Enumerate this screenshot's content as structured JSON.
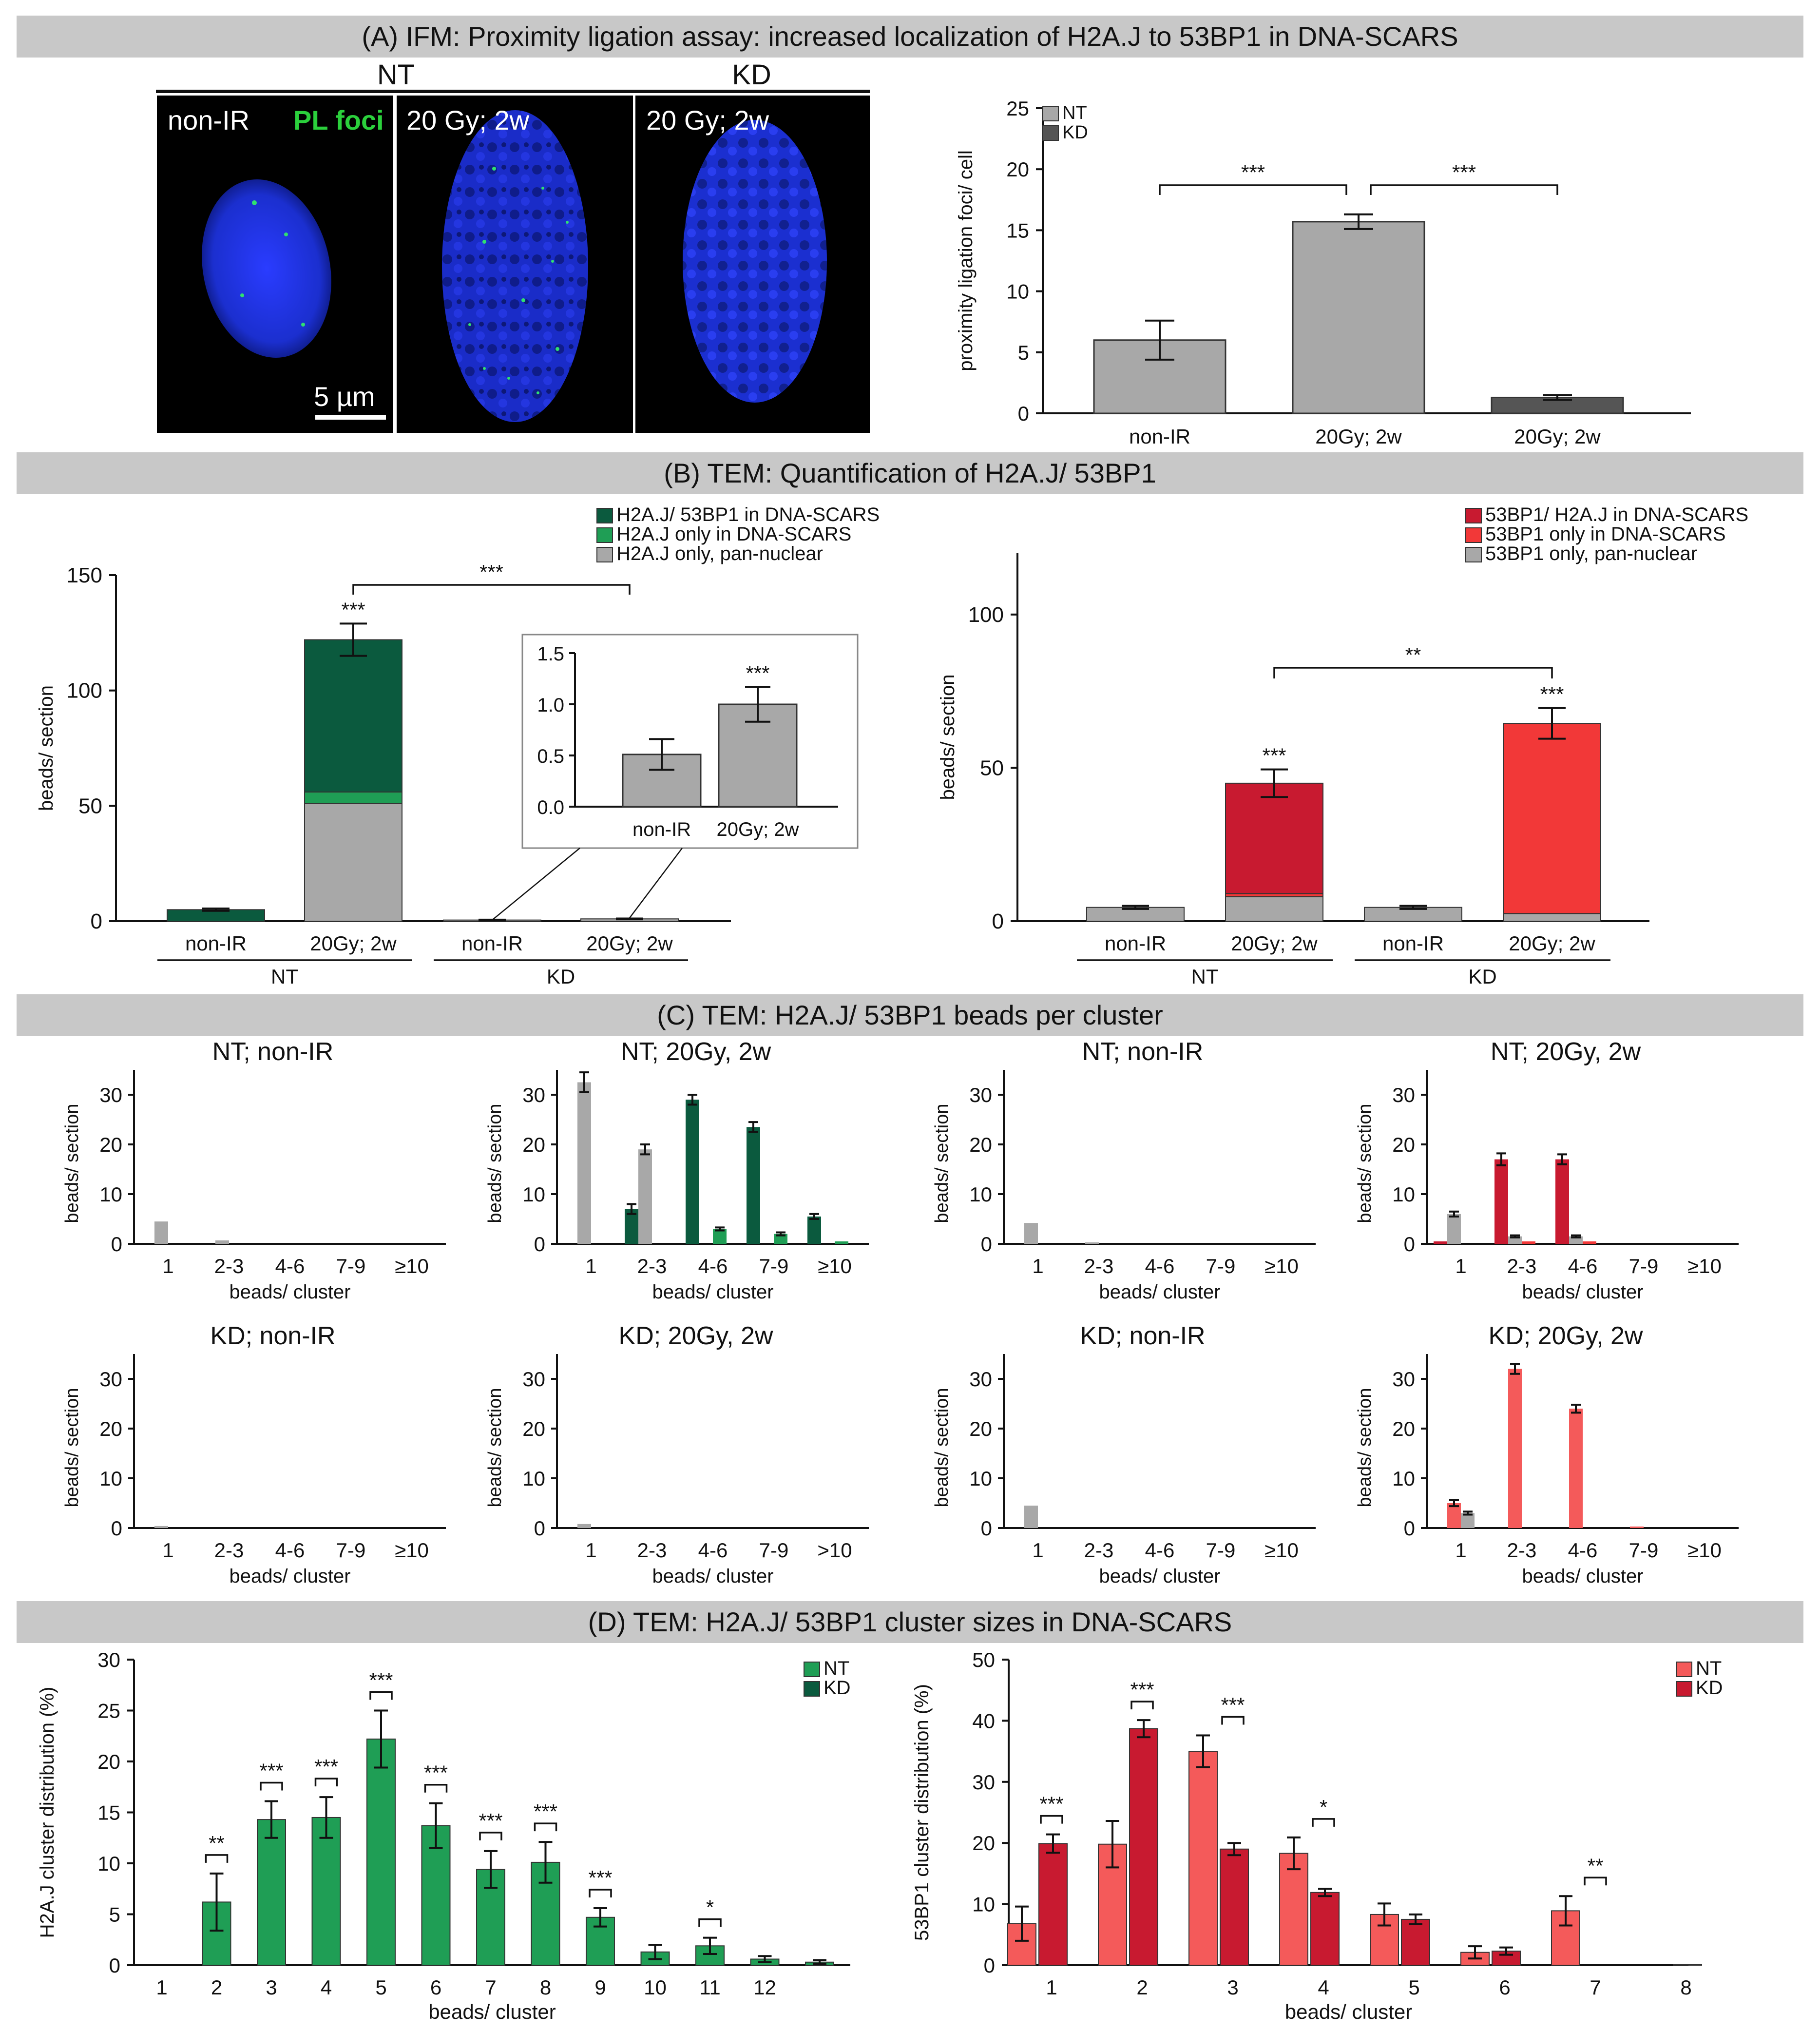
{
  "banners": {
    "a": "(A) IFM: Proximity ligation assay: increased localization of H2A.J to 53BP1 in DNA-SCARS",
    "b": "(B) TEM: Quantification of H2A.J/ 53BP1",
    "c": "(C) TEM: H2A.J/ 53BP1 beads per cluster",
    "d": "(D) TEM: H2A.J/ 53BP1 cluster sizes in DNA-SCARS"
  },
  "micrographs": {
    "group_nt": "NT",
    "group_kd": "KD",
    "panel1_label": "non-IR",
    "pl_foci": "PL foci",
    "panel2_label": "20 Gy; 2w",
    "panel3_label": "20 Gy; 2w",
    "scale_bar": "5 µm"
  },
  "colors": {
    "dark_green": "#0b5a3e",
    "green": "#1f9e55",
    "gray": "#a8a8a8",
    "dark_gray": "#555555",
    "dark_red": "#c81a30",
    "red": "#f23838",
    "light_red": "#f45a5a",
    "nucleus_blue": "#1b2fcf",
    "foci_green": "#30e070"
  },
  "chart_data": [
    {
      "id": "A",
      "type": "bar",
      "ylabel": "proximity ligation foci/ cell",
      "ylim": [
        0,
        25
      ],
      "yticks": [
        0,
        5,
        10,
        15,
        20,
        25
      ],
      "categories": [
        "non-IR",
        "20Gy; 2w",
        "20Gy; 2w"
      ],
      "values": [
        6.0,
        15.7,
        1.3
      ],
      "errors": [
        1.6,
        0.6,
        0.2
      ],
      "bar_colors": [
        "#a8a8a8",
        "#a8a8a8",
        "#555555"
      ],
      "legend": [
        {
          "name": "NT",
          "color": "#a8a8a8"
        },
        {
          "name": "KD",
          "color": "#555555"
        }
      ],
      "significance": [
        {
          "from": 0,
          "to": 1,
          "label": "***"
        },
        {
          "from": 1,
          "to": 2,
          "label": "***"
        }
      ]
    },
    {
      "id": "B-left",
      "type": "stacked-bar",
      "ylabel": "beads/ section",
      "ylim": [
        0,
        150
      ],
      "yticks": [
        0,
        50,
        100,
        150
      ],
      "categories": [
        "non-IR",
        "20Gy; 2w",
        "non-IR",
        "20Gy; 2w"
      ],
      "groups": [
        {
          "name": "NT",
          "from": 0,
          "to": 1
        },
        {
          "name": "KD",
          "from": 2,
          "to": 3
        }
      ],
      "series": [
        {
          "name": "H2A.J only, pan-nuclear",
          "color": "#a8a8a8",
          "values": [
            0,
            51,
            0.5,
            1.0
          ]
        },
        {
          "name": "H2A.J only in DNA-SCARS",
          "color": "#1f9e55",
          "values": [
            0,
            5,
            0,
            0
          ]
        },
        {
          "name": "H2A.J/ 53BP1 in DNA-SCARS",
          "color": "#0b5a3e",
          "values": [
            5,
            66,
            0,
            0
          ]
        }
      ],
      "errors": [
        0.5,
        7,
        0.15,
        0.17
      ],
      "stars": [
        "",
        "***",
        "",
        ""
      ],
      "significance": [
        {
          "from": 1,
          "to": 3,
          "label": "***"
        }
      ]
    },
    {
      "id": "B-inset",
      "type": "bar",
      "ylim": [
        0,
        1.5
      ],
      "yticks": [
        "0.0",
        "0.5",
        "1.0",
        "1.5"
      ],
      "categories": [
        "non-IR",
        "20Gy; 2w"
      ],
      "values": [
        0.51,
        1.0
      ],
      "errors": [
        0.15,
        0.17
      ],
      "stars": [
        "",
        "***"
      ]
    },
    {
      "id": "B-right",
      "type": "stacked-bar",
      "ylabel": "beads/ section",
      "ylim": [
        0,
        120
      ],
      "yticks": [
        0,
        50,
        100
      ],
      "categories": [
        "non-IR",
        "20Gy; 2w",
        "non-IR",
        "20Gy; 2w"
      ],
      "groups": [
        {
          "name": "NT",
          "from": 0,
          "to": 1
        },
        {
          "name": "KD",
          "from": 2,
          "to": 3
        }
      ],
      "series": [
        {
          "name": "53BP1 only, pan-nuclear",
          "color": "#a8a8a8",
          "values": [
            4.5,
            8,
            4.5,
            2.5
          ]
        },
        {
          "name": "53BP1 only in DNA-SCARS",
          "color": "#f23838",
          "values": [
            0,
            1,
            0,
            62
          ]
        },
        {
          "name": "53BP1/ H2A.J in DNA-SCARS",
          "color": "#c81a30",
          "values": [
            0,
            36,
            0,
            0
          ]
        }
      ],
      "errors": [
        0.5,
        4.5,
        0.5,
        5
      ],
      "stars": [
        "",
        "***",
        "",
        "***"
      ],
      "significance": [
        {
          "from": 1,
          "to": 3,
          "label": "**"
        }
      ]
    },
    {
      "id": "C1",
      "type": "bar",
      "title": "NT; non-IR",
      "xlabel": "beads/ cluster",
      "ylabel": "beads/ section",
      "ylim": [
        0,
        35
      ],
      "yticks": [
        0,
        10,
        20,
        30
      ],
      "categories": [
        "1",
        "2-3",
        "4-6",
        "7-9",
        "≥10"
      ],
      "series": [
        {
          "color": "#0b5a3e",
          "values": [
            0,
            0,
            0,
            0,
            0
          ]
        },
        {
          "color": "#a8a8a8",
          "values": [
            4.5,
            0.7,
            0,
            0,
            0
          ]
        },
        {
          "color": "#1f9e55",
          "values": [
            0,
            0,
            0,
            0,
            0
          ]
        }
      ]
    },
    {
      "id": "C2",
      "type": "bar",
      "title": "NT; 20Gy, 2w",
      "xlabel": "beads/ cluster",
      "ylabel": "beads/ section",
      "ylim": [
        0,
        35
      ],
      "yticks": [
        0,
        10,
        20,
        30
      ],
      "categories": [
        "1",
        "2-3",
        "4-6",
        "7-9",
        "≥10"
      ],
      "series": [
        {
          "color": "#0b5a3e",
          "values": [
            0,
            7,
            29,
            23.5,
            5.5
          ]
        },
        {
          "color": "#a8a8a8",
          "values": [
            32.5,
            19,
            0,
            0,
            0
          ]
        },
        {
          "color": "#1f9e55",
          "values": [
            0,
            0,
            3,
            2,
            0.5
          ]
        }
      ],
      "errors": [
        [
          0,
          1,
          1,
          1,
          0.5
        ],
        [
          2,
          1,
          0,
          0,
          0
        ],
        [
          0,
          0,
          0.3,
          0.3,
          0
        ]
      ]
    },
    {
      "id": "C3",
      "type": "bar",
      "title": "NT; non-IR",
      "xlabel": "beads/ cluster",
      "ylabel": "beads/ section",
      "ylim": [
        0,
        35
      ],
      "yticks": [
        0,
        10,
        20,
        30
      ],
      "categories": [
        "1",
        "2-3",
        "4-6",
        "7-9",
        "≥10"
      ],
      "series": [
        {
          "color": "#c81a30",
          "values": [
            0,
            0,
            0,
            0,
            0
          ]
        },
        {
          "color": "#a8a8a8",
          "values": [
            4.2,
            0.3,
            0,
            0,
            0
          ]
        },
        {
          "color": "#f23838",
          "values": [
            0,
            0,
            0,
            0,
            0
          ]
        }
      ]
    },
    {
      "id": "C4",
      "type": "bar",
      "title": "NT; 20Gy, 2w",
      "xlabel": "beads/ cluster",
      "ylabel": "beads/ section",
      "ylim": [
        0,
        35
      ],
      "yticks": [
        0,
        10,
        20,
        30
      ],
      "categories": [
        "1",
        "2-3",
        "4-6",
        "7-9",
        "≥10"
      ],
      "series": [
        {
          "color": "#c81a30",
          "values": [
            0.5,
            17,
            17,
            0,
            0
          ]
        },
        {
          "color": "#a8a8a8",
          "values": [
            6,
            1.5,
            1.5,
            0,
            0
          ]
        },
        {
          "color": "#f23838",
          "values": [
            0,
            0.5,
            0.5,
            0,
            0
          ]
        }
      ],
      "errors": [
        [
          0,
          1.2,
          1,
          0,
          0
        ],
        [
          0.5,
          0.2,
          0.2,
          0,
          0
        ],
        [
          0,
          0,
          0,
          0,
          0
        ]
      ]
    },
    {
      "id": "C5",
      "type": "bar",
      "title": "KD; non-IR",
      "xlabel": "beads/ cluster",
      "ylabel": "beads/ section",
      "ylim": [
        0,
        35
      ],
      "yticks": [
        0,
        10,
        20,
        30
      ],
      "categories": [
        "1",
        "2-3",
        "4-6",
        "7-9",
        "≥10"
      ],
      "series": [
        {
          "color": "#0b5a3e",
          "values": [
            0,
            0,
            0,
            0,
            0
          ]
        },
        {
          "color": "#a8a8a8",
          "values": [
            0.4,
            0,
            0,
            0,
            0
          ]
        },
        {
          "color": "#1f9e55",
          "values": [
            0,
            0,
            0,
            0,
            0
          ]
        }
      ]
    },
    {
      "id": "C6",
      "type": "bar",
      "title": "KD; 20Gy, 2w",
      "xlabel": "beads/ cluster",
      "ylabel": "beads/ section",
      "ylim": [
        0,
        35
      ],
      "yticks": [
        0,
        10,
        20,
        30
      ],
      "categories": [
        "1",
        "2-3",
        "4-6",
        "7-9",
        ">10"
      ],
      "series": [
        {
          "color": "#0b5a3e",
          "values": [
            0,
            0,
            0,
            0,
            0
          ]
        },
        {
          "color": "#a8a8a8",
          "values": [
            0.8,
            0,
            0,
            0,
            0
          ]
        },
        {
          "color": "#1f9e55",
          "values": [
            0,
            0,
            0,
            0,
            0
          ]
        }
      ]
    },
    {
      "id": "C7",
      "type": "bar",
      "title": "KD; non-IR",
      "xlabel": "beads/ cluster",
      "ylabel": "beads/ section",
      "ylim": [
        0,
        35
      ],
      "yticks": [
        0,
        10,
        20,
        30
      ],
      "categories": [
        "1",
        "2-3",
        "4-6",
        "7-9",
        "≥10"
      ],
      "series": [
        {
          "color": "#c81a30",
          "values": [
            0,
            0,
            0,
            0,
            0
          ]
        },
        {
          "color": "#a8a8a8",
          "values": [
            4.5,
            0,
            0,
            0,
            0
          ]
        },
        {
          "color": "#f23838",
          "values": [
            0,
            0,
            0,
            0,
            0
          ]
        }
      ]
    },
    {
      "id": "C8",
      "type": "bar",
      "title": "KD; 20Gy, 2w",
      "xlabel": "beads/ cluster",
      "ylabel": "beads/ section",
      "ylim": [
        0,
        35
      ],
      "yticks": [
        0,
        10,
        20,
        30
      ],
      "categories": [
        "1",
        "2-3",
        "4-6",
        "7-9",
        "≥10"
      ],
      "series": [
        {
          "color": "#f45a5a",
          "values": [
            5,
            32,
            24,
            0.3,
            0
          ]
        },
        {
          "color": "#a8a8a8",
          "values": [
            3,
            0,
            0,
            0,
            0
          ]
        }
      ],
      "errors": [
        [
          0.6,
          1,
          0.8,
          0,
          0
        ],
        [
          0.3,
          0,
          0,
          0,
          0
        ]
      ]
    },
    {
      "id": "D-left",
      "type": "bar",
      "xlabel": "beads/ cluster",
      "ylabel": "H2A.J cluster distribution (%)",
      "ylim": [
        0,
        30
      ],
      "yticks": [
        0,
        5,
        10,
        15,
        20,
        25,
        30
      ],
      "categories": [
        "1",
        "2",
        "3",
        "4",
        "5",
        "6",
        "7",
        "8",
        "9",
        "10",
        "11",
        "12",
        ""
      ],
      "series": [
        {
          "name": "NT",
          "color": "#1f9e55",
          "values": [
            0,
            6.2,
            14.3,
            14.5,
            22.2,
            13.7,
            9.4,
            10.1,
            4.7,
            1.3,
            1.9,
            0.6,
            0.3
          ],
          "errors": [
            0,
            2.8,
            1.8,
            2.0,
            2.8,
            2.2,
            1.8,
            2.0,
            0.9,
            0.7,
            0.8,
            0.3,
            0.2
          ]
        },
        {
          "name": "KD",
          "color": "#0b5a3e",
          "values": [
            0,
            0,
            0,
            0,
            0,
            0,
            0,
            0,
            0,
            0,
            0,
            0,
            0
          ]
        }
      ],
      "stars": [
        "",
        "**",
        "***",
        "***",
        "***",
        "***",
        "***",
        "***",
        "***",
        "",
        "*",
        "",
        ""
      ]
    },
    {
      "id": "D-right",
      "type": "bar",
      "xlabel": "beads/ cluster",
      "ylabel": "53BP1 cluster distribution (%)",
      "ylim": [
        0,
        50
      ],
      "yticks": [
        0,
        10,
        20,
        30,
        40,
        50
      ],
      "categories": [
        "1",
        "2",
        "3",
        "4",
        "5",
        "6",
        "7",
        "8"
      ],
      "series": [
        {
          "name": "NT",
          "color": "#f45a5a",
          "values": [
            6.8,
            19.8,
            35,
            18.3,
            8.3,
            2.1,
            8.9,
            0
          ],
          "errors": [
            2.8,
            3.8,
            2.6,
            2.6,
            1.8,
            1.0,
            2.4,
            0
          ]
        },
        {
          "name": "KD",
          "color": "#c81a30",
          "values": [
            19.9,
            38.7,
            19.0,
            11.9,
            7.5,
            2.3,
            0,
            0.1
          ],
          "errors": [
            1.5,
            1.4,
            1.0,
            0.6,
            0.8,
            0.6,
            0,
            0
          ]
        }
      ],
      "stars": [
        "***",
        "***",
        "***",
        "*",
        "",
        "",
        "**",
        ""
      ]
    }
  ]
}
